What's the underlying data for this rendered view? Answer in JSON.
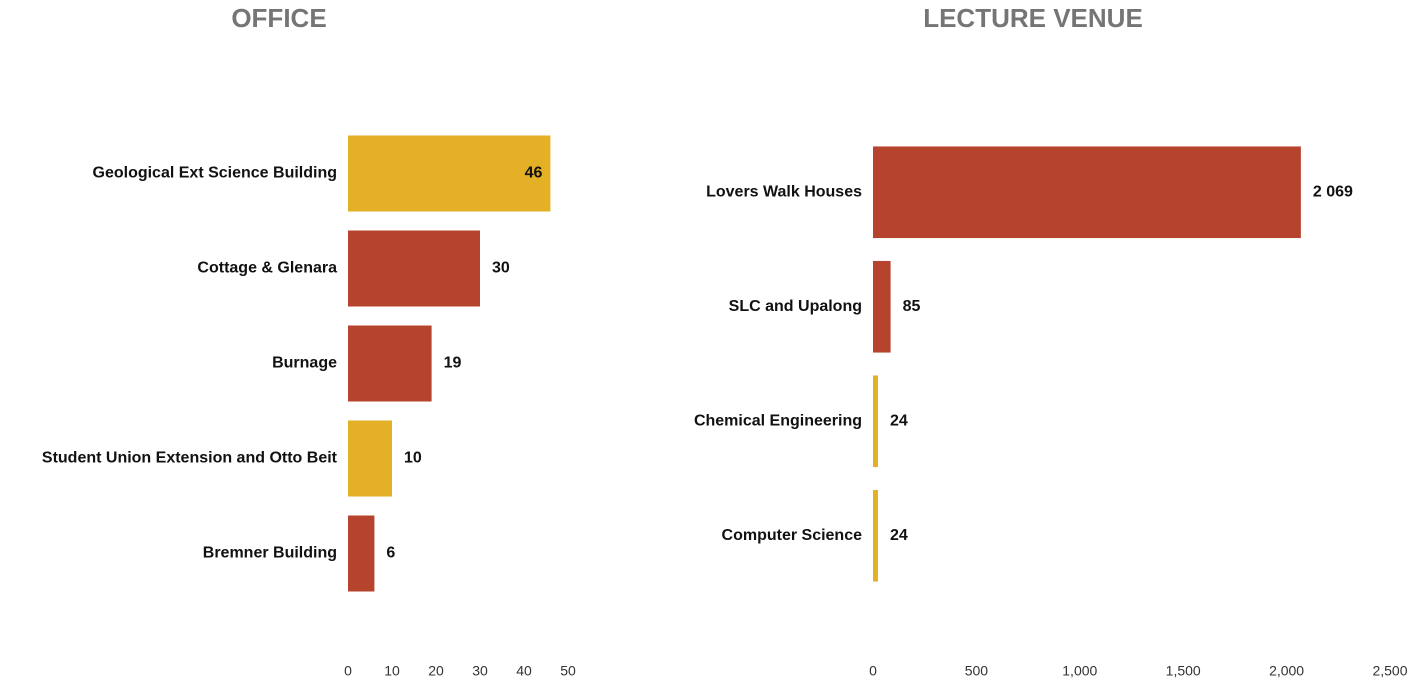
{
  "chart_data": [
    {
      "type": "bar",
      "orientation": "horizontal",
      "title": "OFFICE",
      "categories": [
        "Geological Ext Science Building",
        "Cottage & Glenara",
        "Burnage",
        "Student Union Extension and Otto Beit",
        "Bremner Building"
      ],
      "values": [
        46,
        30,
        19,
        10,
        6
      ],
      "colors": [
        "#e3b026",
        "#b5432e",
        "#b5432e",
        "#e3b026",
        "#b5432e"
      ],
      "xlim": [
        0,
        50
      ],
      "xticks": [
        0,
        10,
        20,
        30,
        40,
        50
      ],
      "grid": false
    },
    {
      "type": "bar",
      "orientation": "horizontal",
      "title": "LECTURE VENUE",
      "categories": [
        "Lovers Walk Houses",
        "SLC and Upalong",
        "Chemical Engineering",
        "Computer Science"
      ],
      "values": [
        2069,
        85,
        24,
        24
      ],
      "value_labels": [
        "2 069",
        "85",
        "24",
        "24"
      ],
      "colors": [
        "#b5432e",
        "#b5432e",
        "#e3b026",
        "#e3b026"
      ],
      "xlim": [
        0,
        2500
      ],
      "xticks": [
        0,
        500,
        {
          "value": 1000,
          "label": "1,000"
        },
        {
          "value": 1500,
          "label": "1,500"
        },
        {
          "value": 2000,
          "label": "2,000"
        },
        {
          "value": 2500,
          "label": "2,500"
        }
      ],
      "grid": false
    }
  ]
}
